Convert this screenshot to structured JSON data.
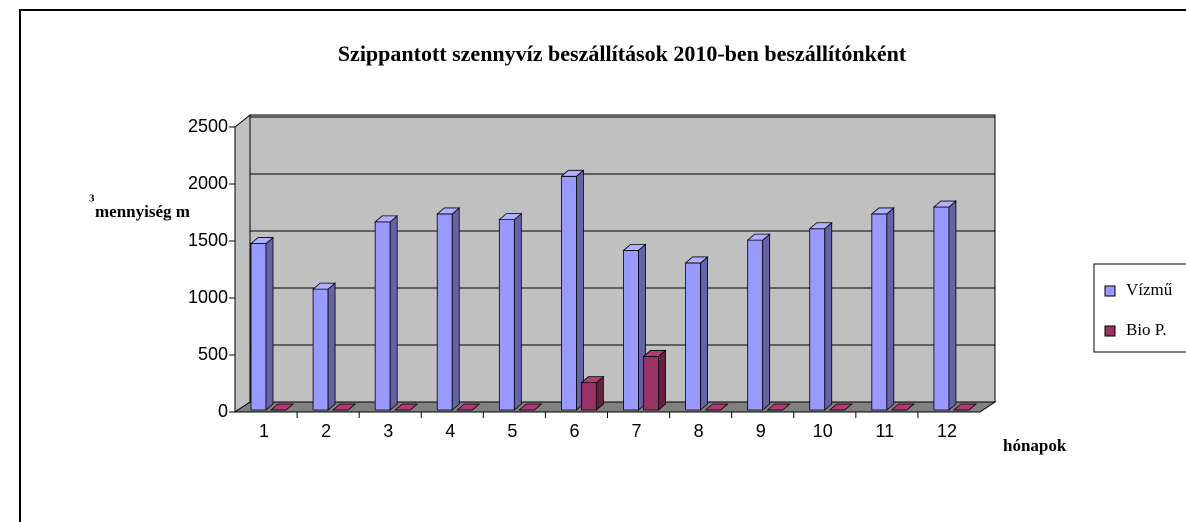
{
  "chart_data": {
    "type": "bar3d",
    "title": "Szippantott szennyvíz beszállítások 2010-ben beszállítónként",
    "ylabel": "mennyiség m",
    "ylabel_superscript": "3",
    "xlabel": "hónapok",
    "categories": [
      "1",
      "2",
      "3",
      "4",
      "5",
      "6",
      "7",
      "8",
      "9",
      "10",
      "11",
      "12"
    ],
    "series": [
      {
        "name": "Vízmű",
        "color": "#9999ff",
        "values": [
          1460,
          1060,
          1650,
          1720,
          1670,
          2050,
          1400,
          1290,
          1490,
          1590,
          1720,
          1780
        ]
      },
      {
        "name": "Bio P.",
        "color": "#993366",
        "values": [
          0,
          0,
          0,
          0,
          0,
          240,
          470,
          0,
          0,
          0,
          0,
          0
        ]
      }
    ],
    "ylim": [
      0,
      2500
    ],
    "yticks": [
      0,
      500,
      1000,
      1500,
      2000,
      2500
    ],
    "grid": true,
    "legend": "right"
  }
}
